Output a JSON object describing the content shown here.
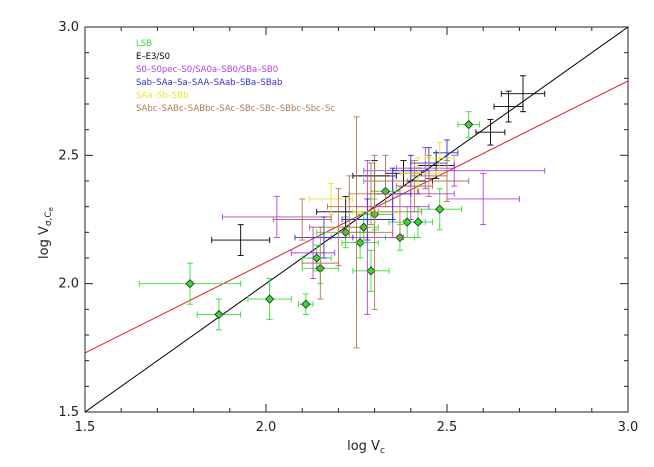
{
  "chart_data": {
    "type": "scatter",
    "title": "",
    "xlabel": "log V",
    "xlabel_sub": "c",
    "ylabel": "log V",
    "ylabel_sub": "σ,C",
    "ylabel_subsub": "e",
    "xlim": [
      1.5,
      3.0
    ],
    "ylim": [
      1.5,
      3.0
    ],
    "xticks": [
      "1.5",
      "2.0",
      "2.5",
      "3.0"
    ],
    "yticks": [
      "1.5",
      "2.0",
      "2.5",
      "3.0"
    ],
    "grid": false,
    "legend_position": "top-left",
    "legend": [
      {
        "label": "LSB",
        "color": "#33dd33"
      },
      {
        "label": "E–E3/S0",
        "color": "#000000"
      },
      {
        "label": "S0–S0pec–S0/SA0a–SB0/SBa–SB0",
        "color": "#b040e0"
      },
      {
        "label": "Sab–SAa–Sa–SAA–SAab–SBa–SBab",
        "color": "#3030d0"
      },
      {
        "label": "SAa–Sb–SBb",
        "color": "#f0e030"
      },
      {
        "label": "SAbc–SABc–SABbc–SAc–SBc–SBc–SBbc–Sbc–Sc",
        "color": "#b07850"
      }
    ],
    "lines": [
      {
        "kind": "one-to-one",
        "color": "#000000",
        "points": [
          [
            1.5,
            1.5
          ],
          [
            3.0,
            3.0
          ]
        ]
      },
      {
        "kind": "fit",
        "color": "#e02020",
        "points": [
          [
            1.5,
            1.73
          ],
          [
            3.0,
            2.79
          ]
        ]
      }
    ],
    "series": [
      {
        "name": "LSB",
        "color": "#33dd33",
        "marker": "diamond",
        "points": [
          {
            "x": 1.79,
            "y": 2.0,
            "xerr": 0.14,
            "yerr": 0.08
          },
          {
            "x": 1.87,
            "y": 1.88,
            "xerr": 0.06,
            "yerr": 0.06
          },
          {
            "x": 2.01,
            "y": 1.94,
            "xerr": 0.06,
            "yerr": 0.08
          },
          {
            "x": 2.11,
            "y": 1.92,
            "xerr": 0.02,
            "yerr": 0.04
          },
          {
            "x": 2.14,
            "y": 2.1,
            "xerr": 0.04,
            "yerr": 0.05
          },
          {
            "x": 2.15,
            "y": 2.06,
            "xerr": 0.05,
            "yerr": 0.06
          },
          {
            "x": 2.22,
            "y": 2.2,
            "xerr": 0.08,
            "yerr": 0.06
          },
          {
            "x": 2.26,
            "y": 2.16,
            "xerr": 0.05,
            "yerr": 0.06
          },
          {
            "x": 2.27,
            "y": 2.22,
            "xerr": 0.04,
            "yerr": 0.06
          },
          {
            "x": 2.29,
            "y": 2.05,
            "xerr": 0.05,
            "yerr": 0.08
          },
          {
            "x": 2.3,
            "y": 2.27,
            "xerr": 0.05,
            "yerr": 0.06
          },
          {
            "x": 2.33,
            "y": 2.36,
            "xerr": 0.04,
            "yerr": 0.06
          },
          {
            "x": 2.37,
            "y": 2.18,
            "xerr": 0.04,
            "yerr": 0.05
          },
          {
            "x": 2.39,
            "y": 2.24,
            "xerr": 0.05,
            "yerr": 0.06
          },
          {
            "x": 2.42,
            "y": 2.24,
            "xerr": 0.04,
            "yerr": 0.06
          },
          {
            "x": 2.48,
            "y": 2.29,
            "xerr": 0.06,
            "yerr": 0.08
          },
          {
            "x": 2.56,
            "y": 2.62,
            "xerr": 0.03,
            "yerr": 0.05
          }
        ]
      },
      {
        "name": "E–E3/S0",
        "color": "#000000",
        "marker": "none",
        "points": [
          {
            "x": 1.93,
            "y": 2.17,
            "xerr": 0.08,
            "yerr": 0.06
          },
          {
            "x": 2.22,
            "y": 2.28,
            "xerr": 0.08,
            "yerr": 0.06
          },
          {
            "x": 2.3,
            "y": 2.42,
            "xerr": 0.06,
            "yerr": 0.06
          },
          {
            "x": 2.38,
            "y": 2.43,
            "xerr": 0.05,
            "yerr": 0.05
          },
          {
            "x": 2.42,
            "y": 2.4,
            "xerr": 0.04,
            "yerr": 0.05
          },
          {
            "x": 2.47,
            "y": 2.46,
            "xerr": 0.05,
            "yerr": 0.05
          },
          {
            "x": 2.62,
            "y": 2.59,
            "xerr": 0.04,
            "yerr": 0.05
          },
          {
            "x": 2.67,
            "y": 2.69,
            "xerr": 0.04,
            "yerr": 0.06
          },
          {
            "x": 2.71,
            "y": 2.74,
            "xerr": 0.06,
            "yerr": 0.07
          }
        ]
      },
      {
        "name": "S0–S0pec–S0/SA0a–SB0/SBa–SB0",
        "color": "#b040e0",
        "marker": "none",
        "points": [
          {
            "x": 2.03,
            "y": 2.26,
            "xerr": 0.15,
            "yerr": 0.08
          },
          {
            "x": 2.13,
            "y": 2.12,
            "xerr": 0.06,
            "yerr": 0.1
          },
          {
            "x": 2.28,
            "y": 2.18,
            "xerr": 0.1,
            "yerr": 0.3
          },
          {
            "x": 2.35,
            "y": 2.3,
            "xerr": 0.1,
            "yerr": 0.12
          },
          {
            "x": 2.4,
            "y": 2.35,
            "xerr": 0.12,
            "yerr": 0.1
          },
          {
            "x": 2.44,
            "y": 2.45,
            "xerr": 0.08,
            "yerr": 0.08
          },
          {
            "x": 2.52,
            "y": 2.44,
            "xerr": 0.25,
            "yerr": 0.06
          },
          {
            "x": 2.6,
            "y": 2.33,
            "xerr": 0.1,
            "yerr": 0.1
          }
        ]
      },
      {
        "name": "Sab–SAa–Sa–SAA–SAab–SBa–SBab",
        "color": "#3030d0",
        "marker": "none",
        "points": [
          {
            "x": 2.16,
            "y": 2.18,
            "xerr": 0.08,
            "yerr": 0.08
          },
          {
            "x": 2.28,
            "y": 2.25,
            "xerr": 0.07,
            "yerr": 0.08
          },
          {
            "x": 2.35,
            "y": 2.35,
            "xerr": 0.05,
            "yerr": 0.1
          },
          {
            "x": 2.4,
            "y": 2.44,
            "xerr": 0.05,
            "yerr": 0.06
          },
          {
            "x": 2.45,
            "y": 2.47,
            "xerr": 0.05,
            "yerr": 0.06
          },
          {
            "x": 2.5,
            "y": 2.51,
            "xerr": 0.03,
            "yerr": 0.05
          }
        ]
      },
      {
        "name": "SAa–Sb–SBb",
        "color": "#f0e030",
        "marker": "none",
        "points": [
          {
            "x": 2.18,
            "y": 2.33,
            "xerr": 0.06,
            "yerr": 0.06
          },
          {
            "x": 2.3,
            "y": 2.28,
            "xerr": 0.06,
            "yerr": 0.08
          },
          {
            "x": 2.42,
            "y": 2.43,
            "xerr": 0.05,
            "yerr": 0.06
          },
          {
            "x": 2.48,
            "y": 2.49,
            "xerr": 0.04,
            "yerr": 0.06
          }
        ]
      },
      {
        "name": "SAbc–SABc–SABbc–SAc–SBc–SBc–SBbc–Sbc–Sc",
        "color": "#b07850",
        "marker": "none",
        "points": [
          {
            "x": 2.1,
            "y": 2.25,
            "xerr": 0.08,
            "yerr": 0.08
          },
          {
            "x": 2.15,
            "y": 2.08,
            "xerr": 0.05,
            "yerr": 0.14
          },
          {
            "x": 2.2,
            "y": 2.22,
            "xerr": 0.08,
            "yerr": 0.15
          },
          {
            "x": 2.23,
            "y": 2.3,
            "xerr": 0.06,
            "yerr": 0.12
          },
          {
            "x": 2.25,
            "y": 2.2,
            "xerr": 0.05,
            "yerr": 0.45
          },
          {
            "x": 2.29,
            "y": 2.35,
            "xerr": 0.06,
            "yerr": 0.12
          },
          {
            "x": 2.3,
            "y": 2.2,
            "xerr": 0.05,
            "yerr": 0.3
          },
          {
            "x": 2.33,
            "y": 2.4,
            "xerr": 0.06,
            "yerr": 0.1
          },
          {
            "x": 2.37,
            "y": 2.28,
            "xerr": 0.06,
            "yerr": 0.1
          },
          {
            "x": 2.41,
            "y": 2.38,
            "xerr": 0.05,
            "yerr": 0.1
          },
          {
            "x": 2.45,
            "y": 2.42,
            "xerr": 0.05,
            "yerr": 0.08
          },
          {
            "x": 2.5,
            "y": 2.4,
            "xerr": 0.06,
            "yerr": 0.08
          }
        ]
      }
    ]
  }
}
